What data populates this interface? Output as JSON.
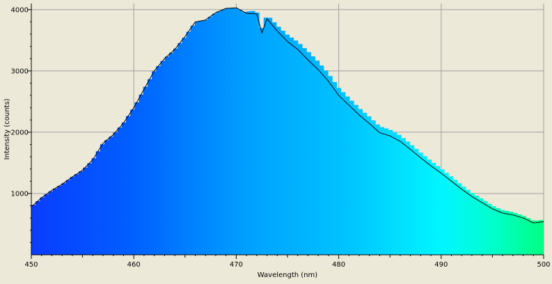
{
  "chart_data": {
    "type": "area",
    "title": "",
    "xlabel": "Wavelength (nm)",
    "ylabel": "Intensity (counts)",
    "xlim": [
      450,
      500
    ],
    "ylim": [
      0,
      4100
    ],
    "grid": true,
    "fill": "spectral-gradient",
    "x_ticks": [
      450,
      460,
      470,
      480,
      490,
      500
    ],
    "y_ticks": [
      1000,
      2000,
      3000,
      4000
    ],
    "series": [
      {
        "x": [
          450,
          451,
          452,
          453,
          454,
          455,
          456,
          457,
          458,
          459,
          460,
          461,
          462,
          463,
          464,
          465,
          466,
          467,
          468,
          469,
          470,
          471,
          472,
          472.5,
          473,
          474,
          475,
          476,
          477,
          478,
          479,
          480,
          481,
          482,
          483,
          484,
          485,
          486,
          487,
          488,
          489,
          490,
          491,
          492,
          493,
          494,
          495,
          496,
          497,
          498,
          499,
          500
        ],
        "y": [
          780,
          930,
          1050,
          1150,
          1270,
          1380,
          1550,
          1820,
          1960,
          2150,
          2400,
          2700,
          3000,
          3200,
          3350,
          3560,
          3800,
          3830,
          3950,
          4020,
          4030,
          3940,
          3930,
          3620,
          3850,
          3650,
          3480,
          3350,
          3180,
          3020,
          2830,
          2600,
          2440,
          2280,
          2140,
          1990,
          1940,
          1850,
          1720,
          1580,
          1450,
          1330,
          1200,
          1070,
          950,
          850,
          750,
          680,
          650,
          600,
          520,
          540
        ]
      }
    ]
  }
}
